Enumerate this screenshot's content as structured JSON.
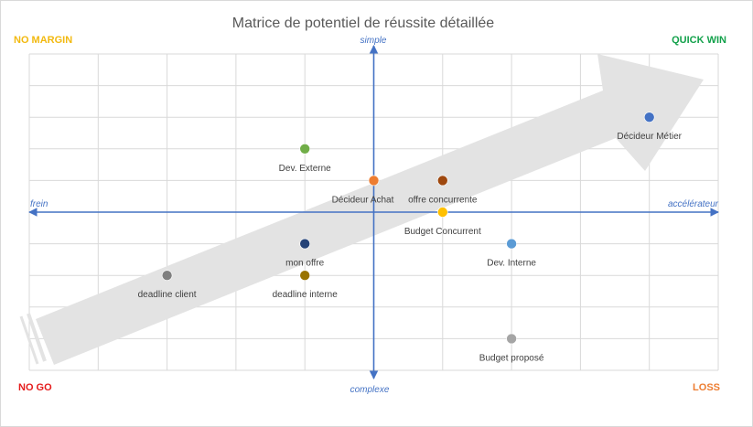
{
  "chart_data": {
    "type": "scatter",
    "title": "Matrice de potentiel de réussite détaillée",
    "xlim": [
      -5,
      5
    ],
    "ylim": [
      -5,
      5
    ],
    "grid": true,
    "axis_labels": {
      "left": "frein",
      "right": "accélérateur",
      "top": "simple",
      "bottom": "complexe"
    },
    "quadrants": {
      "top_left": {
        "label": "NO MARGIN",
        "color": "#f2b90f"
      },
      "top_right": {
        "label": "QUICK WIN",
        "color": "#13a14b"
      },
      "bottom_left": {
        "label": "NO GO",
        "color": "#e51c1c"
      },
      "bottom_right": {
        "label": "LOSS",
        "color": "#ed7d31"
      }
    },
    "points": [
      {
        "label": "Décideur Métier",
        "x": 4,
        "y": 3,
        "color": "#4472c4"
      },
      {
        "label": "Dev. Externe",
        "x": -1,
        "y": 2,
        "color": "#70ad47"
      },
      {
        "label": "Décideur Achat",
        "x": 0,
        "y": 1,
        "color": "#ed7d31"
      },
      {
        "label": "offre concurrente",
        "x": 1,
        "y": 1,
        "color": "#9e480e"
      },
      {
        "label": "Budget Concurrent",
        "x": 1,
        "y": 0,
        "color": "#ffc000"
      },
      {
        "label": "mon offre",
        "x": -1,
        "y": -1,
        "color": "#264478"
      },
      {
        "label": "Dev. Interne",
        "x": 2,
        "y": -1,
        "color": "#5b9bd5"
      },
      {
        "label": "deadline client",
        "x": -3,
        "y": -2,
        "color": "#7f7f7f"
      },
      {
        "label": "deadline interne",
        "x": -1,
        "y": -2,
        "color": "#997300"
      },
      {
        "label": "Budget proposé",
        "x": 2,
        "y": -4,
        "color": "#a5a5a5"
      }
    ]
  }
}
